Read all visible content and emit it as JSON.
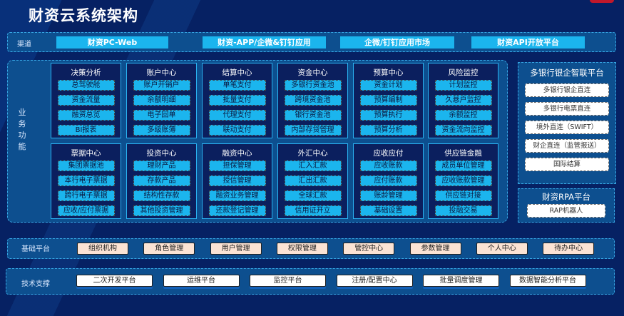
{
  "title": "财资云系统架构",
  "colors": {
    "background": "#062163",
    "band": "#0d4f8f",
    "channel_button": "#1bb5ee",
    "module_item": "#1bb5ee",
    "base_button": "#fbe3d4",
    "tech_button": "#ffffff"
  },
  "channel": {
    "label": "渠道",
    "items": [
      "财资PC-Web",
      "财资-APP/企微&钉钉应用",
      "企微/钉钉应用市场",
      "财资API开放平台"
    ]
  },
  "business": {
    "label": "业务功能",
    "modules": [
      {
        "title": "决策分析",
        "items": [
          "总驾驶舱",
          "资金流量",
          "融资总览",
          "BI报表"
        ]
      },
      {
        "title": "账户中心",
        "items": [
          "账户开销户",
          "余额明细",
          "电子回单",
          "多级账簿"
        ]
      },
      {
        "title": "结算中心",
        "items": [
          "单笔支付",
          "批量支付",
          "代理支付",
          "联动支付"
        ]
      },
      {
        "title": "资金中心",
        "items": [
          "多银行资金池",
          "跨境资金池",
          "银行资金池",
          "内部存贷管理"
        ]
      },
      {
        "title": "预算中心",
        "items": [
          "资金计划",
          "预算编制",
          "预算执行",
          "预算分析"
        ]
      },
      {
        "title": "风险监控",
        "items": [
          "计划监控",
          "久悬户监控",
          "余额监控",
          "资金流向监控"
        ]
      },
      {
        "title": "票据中心",
        "items": [
          "集团票据池",
          "本行电子票据",
          "跨行电子票据",
          "应收/应付票据"
        ]
      },
      {
        "title": "投资中心",
        "items": [
          "理财产品",
          "存款产品",
          "结构性存款",
          "其他投资管理"
        ]
      },
      {
        "title": "融资中心",
        "items": [
          "担保管理",
          "授信管理",
          "融资业务管理",
          "还款登记管理"
        ]
      },
      {
        "title": "外汇中心",
        "items": [
          "汇入汇款",
          "汇出汇款",
          "全球汇款",
          "信用证开立"
        ]
      },
      {
        "title": "应收应付",
        "items": [
          "应收账款",
          "应付账款",
          "账龄管理",
          "基础设置"
        ]
      },
      {
        "title": "供应链金融",
        "items": [
          "成员单位管理",
          "应收账款管理",
          "供应链对接",
          "投融交易"
        ]
      }
    ]
  },
  "bank_platform": {
    "title": "多银行银企智联平台",
    "items": [
      "多银行银企直连",
      "多银行电票直连",
      "境外直连（SWIFT）",
      "财企直连（监管报送）",
      "国际结算"
    ]
  },
  "rpa_platform": {
    "title": "财资RPA平台",
    "items": [
      "RAP机器人"
    ]
  },
  "base_platform": {
    "label": "基础平台",
    "items": [
      "组织机构",
      "角色管理",
      "用户管理",
      "权限管理",
      "管控中心",
      "参数管理",
      "个人中心",
      "待办中心"
    ]
  },
  "tech_support": {
    "label": "技术支撑",
    "items": [
      "二次开发平台",
      "运维平台",
      "监控平台",
      "注册/配置中心",
      "批量调度管理",
      "数据智能分析平台"
    ]
  }
}
